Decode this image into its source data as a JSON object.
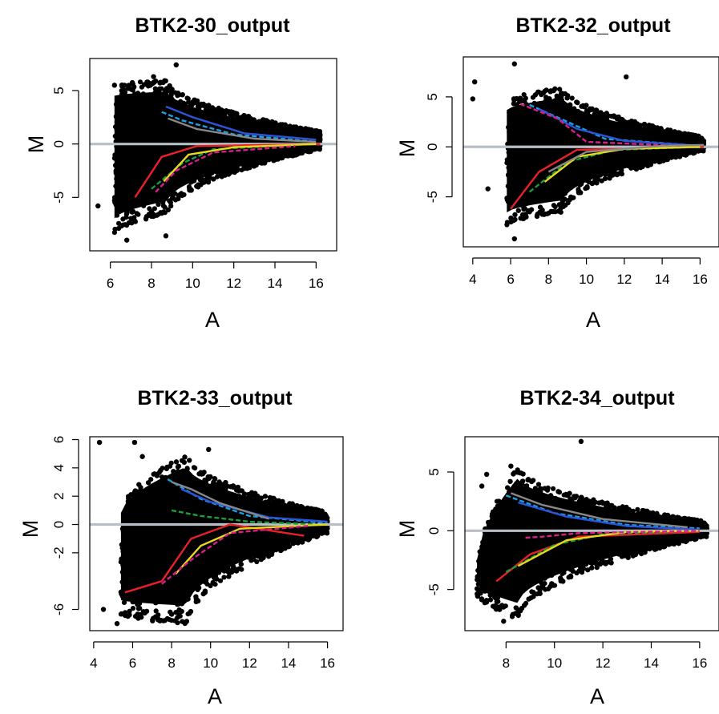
{
  "colors": {
    "background": "#ffffff",
    "points": "#000000",
    "reference_line": "#b9bec6",
    "loess_curves": [
      "#e8202a",
      "#19a0e6",
      "#2b55d6",
      "#1a9e3c",
      "#e8d81e",
      "#d81f8c",
      "#888888",
      "#ffffff"
    ]
  },
  "chart_data": [
    {
      "type": "scatter",
      "title": "BTK2-30_output",
      "xlabel": "A",
      "ylabel": "M",
      "xlim": [
        5,
        17
      ],
      "ylim": [
        -10,
        8
      ],
      "xticks": [
        6,
        8,
        10,
        12,
        14,
        16
      ],
      "yticks": [
        -5,
        0,
        5
      ],
      "reference_line_y": 0,
      "grid": false,
      "legend": "none",
      "cloud": {
        "start_a": 6.2,
        "start_m": [
          -8.5,
          5.5
        ],
        "center_a": 8.8,
        "center_m": [
          -6.5,
          6.0
        ],
        "end_a": 16.2,
        "end_m": [
          -0.5,
          1.2
        ]
      },
      "outliers": [
        [
          5.4,
          -5.8
        ],
        [
          6.8,
          -9.0
        ],
        [
          8.7,
          -8.6
        ],
        [
          8.1,
          6.3
        ],
        [
          9.2,
          7.4
        ],
        [
          6.2,
          5.5
        ]
      ],
      "series": [
        {
          "points": [
            [
              7.2,
              -5.0
            ],
            [
              8.5,
              -1.2
            ],
            [
              10.2,
              -0.2
            ],
            [
              16.2,
              0.0
            ]
          ]
        },
        {
          "points": [
            [
              8.5,
              3.0
            ],
            [
              9.5,
              2.2
            ],
            [
              12.0,
              0.9
            ],
            [
              16.0,
              0.2
            ]
          ]
        },
        {
          "points": [
            [
              8.7,
              3.5
            ],
            [
              10.0,
              2.5
            ],
            [
              12.5,
              1.0
            ],
            [
              16.0,
              0.4
            ]
          ]
        },
        {
          "points": [
            [
              8.0,
              -4.2
            ],
            [
              9.5,
              -1.8
            ],
            [
              11.0,
              -0.5
            ],
            [
              15.5,
              0.0
            ]
          ]
        },
        {
          "points": [
            [
              8.6,
              -3.5
            ],
            [
              9.8,
              -1.0
            ],
            [
              12.0,
              -0.3
            ],
            [
              16.0,
              0.0
            ]
          ]
        },
        {
          "points": [
            [
              8.2,
              -4.5
            ],
            [
              9.2,
              -2.5
            ],
            [
              11.0,
              -0.8
            ],
            [
              15.0,
              -0.2
            ]
          ]
        },
        {
          "points": [
            [
              8.8,
              2.4
            ],
            [
              10.2,
              1.4
            ],
            [
              13.0,
              0.5
            ],
            [
              16.0,
              0.2
            ]
          ]
        }
      ]
    },
    {
      "type": "scatter",
      "title": "BTK2-32_output",
      "xlabel": "A",
      "ylabel": "M",
      "xlim": [
        3.5,
        17
      ],
      "ylim": [
        -10,
        9
      ],
      "xticks": [
        4,
        6,
        8,
        10,
        12,
        14,
        16
      ],
      "yticks": [
        -5,
        0,
        5
      ],
      "reference_line_y": 0,
      "grid": false,
      "legend": "none",
      "cloud": {
        "start_a": 5.8,
        "start_m": [
          -8.0,
          4.5
        ],
        "center_a": 8.8,
        "center_m": [
          -6.5,
          6.0
        ],
        "end_a": 16.2,
        "end_m": [
          -0.4,
          1.0
        ]
      },
      "outliers": [
        [
          4.0,
          4.8
        ],
        [
          4.1,
          6.5
        ],
        [
          6.2,
          8.3
        ],
        [
          6.2,
          -9.2
        ],
        [
          12.1,
          7.0
        ],
        [
          4.8,
          -4.2
        ]
      ],
      "series": [
        {
          "points": [
            [
              6.0,
              -6.2
            ],
            [
              7.5,
              -2.5
            ],
            [
              9.5,
              -0.3
            ],
            [
              16.2,
              0.0
            ]
          ]
        },
        {
          "points": [
            [
              7.0,
              4.2
            ],
            [
              9.0,
              2.5
            ],
            [
              11.0,
              0.8
            ],
            [
              16.0,
              0.1
            ]
          ]
        },
        {
          "points": [
            [
              7.5,
              3.8
            ],
            [
              9.5,
              1.8
            ],
            [
              12.0,
              0.6
            ],
            [
              16.0,
              0.1
            ]
          ]
        },
        {
          "points": [
            [
              7.0,
              -4.5
            ],
            [
              9.0,
              -1.5
            ],
            [
              11.5,
              -0.3
            ],
            [
              16.0,
              0.0
            ]
          ]
        },
        {
          "points": [
            [
              7.8,
              -3.5
            ],
            [
              9.5,
              -1.0
            ],
            [
              12.0,
              -0.2
            ],
            [
              16.0,
              0.0
            ]
          ]
        },
        {
          "points": [
            [
              6.5,
              4.3
            ],
            [
              8.5,
              2.8
            ],
            [
              10.0,
              0.5
            ],
            [
              15.0,
              0.1
            ]
          ]
        },
        {
          "points": [
            [
              8.0,
              -2.5
            ],
            [
              10.0,
              -0.5
            ],
            [
              14.0,
              0.1
            ],
            [
              16.2,
              0.2
            ]
          ]
        }
      ]
    },
    {
      "type": "scatter",
      "title": "BTK2-33_output",
      "xlabel": "A",
      "ylabel": "M",
      "xlim": [
        3.8,
        16.8
      ],
      "ylim": [
        -7.5,
        6.2
      ],
      "xticks": [
        4,
        6,
        8,
        10,
        12,
        14,
        16
      ],
      "yticks": [
        -6,
        -2,
        0,
        2,
        4,
        6
      ],
      "reference_line_y": 0,
      "grid": false,
      "legend": "none",
      "cloud": {
        "start_a": 5.4,
        "start_m": [
          -6.5,
          1.0
        ],
        "center_a": 8.8,
        "center_m": [
          -7.0,
          5.0
        ],
        "end_a": 16.0,
        "end_m": [
          -0.6,
          0.9
        ]
      },
      "outliers": [
        [
          4.3,
          5.8
        ],
        [
          4.5,
          -6.0
        ],
        [
          5.2,
          -7.0
        ],
        [
          6.1,
          5.8
        ],
        [
          6.5,
          4.8
        ],
        [
          9.9,
          5.3
        ]
      ],
      "series": [
        {
          "points": [
            [
              5.6,
              -4.8
            ],
            [
              7.5,
              -4.0
            ],
            [
              9.0,
              -1.0
            ],
            [
              11.0,
              0.0
            ],
            [
              14.8,
              -0.8
            ]
          ]
        },
        {
          "points": [
            [
              7.8,
              3.2
            ],
            [
              9.5,
              1.8
            ],
            [
              12.0,
              0.6
            ],
            [
              16.0,
              0.1
            ]
          ]
        },
        {
          "points": [
            [
              8.5,
              2.5
            ],
            [
              10.0,
              1.6
            ],
            [
              13.0,
              0.5
            ],
            [
              16.0,
              0.2
            ]
          ]
        },
        {
          "points": [
            [
              8.0,
              1.0
            ],
            [
              9.5,
              0.6
            ],
            [
              12.0,
              0.2
            ],
            [
              15.5,
              0.0
            ]
          ]
        },
        {
          "points": [
            [
              8.2,
              -3.5
            ],
            [
              9.5,
              -1.5
            ],
            [
              11.5,
              -0.3
            ],
            [
              16.0,
              0.0
            ]
          ]
        },
        {
          "points": [
            [
              7.5,
              -4.2
            ],
            [
              9.0,
              -2.5
            ],
            [
              11.0,
              -0.6
            ],
            [
              15.0,
              -0.1
            ]
          ]
        },
        {
          "points": [
            [
              8.0,
              3.0
            ],
            [
              9.0,
              2.5
            ],
            [
              10.5,
              1.5
            ],
            [
              13.0,
              0.4
            ]
          ]
        }
      ]
    },
    {
      "type": "scatter",
      "title": "BTK2-34_output",
      "xlabel": "A",
      "ylabel": "M",
      "xlim": [
        6.3,
        16.8
      ],
      "ylim": [
        -8.5,
        8
      ],
      "xticks": [
        8,
        10,
        12,
        14,
        16
      ],
      "yticks": [
        -5,
        0,
        5
      ],
      "reference_line_y": 0,
      "grid": false,
      "legend": "none",
      "cloud": {
        "start_a": 6.8,
        "start_m": [
          -5.5,
          -3.0
        ],
        "center_a": 8.5,
        "center_m": [
          -7.5,
          5.5
        ],
        "end_a": 16.3,
        "end_m": [
          -0.5,
          0.8
        ]
      },
      "outliers": [
        [
          6.9,
          -5.0
        ],
        [
          8.2,
          5.5
        ],
        [
          7.0,
          3.8
        ],
        [
          11.1,
          7.6
        ],
        [
          7.9,
          -7.7
        ],
        [
          7.2,
          4.8
        ]
      ],
      "series": [
        {
          "points": [
            [
              7.6,
              -4.3
            ],
            [
              9.0,
              -2.0
            ],
            [
              11.0,
              -0.5
            ],
            [
              16.0,
              -0.1
            ]
          ]
        },
        {
          "points": [
            [
              8.0,
              3.0
            ],
            [
              10.0,
              1.5
            ],
            [
              13.0,
              0.5
            ],
            [
              16.0,
              0.2
            ]
          ]
        },
        {
          "points": [
            [
              8.5,
              2.4
            ],
            [
              10.5,
              1.2
            ],
            [
              13.0,
              0.4
            ],
            [
              16.0,
              0.1
            ]
          ]
        },
        {
          "points": [
            [
              8.0,
              -3.5
            ],
            [
              10.0,
              -1.2
            ],
            [
              12.0,
              -0.3
            ],
            [
              16.0,
              0.0
            ]
          ]
        },
        {
          "points": [
            [
              8.5,
              -3.0
            ],
            [
              10.5,
              -0.8
            ],
            [
              13.0,
              -0.1
            ],
            [
              16.0,
              0.0
            ]
          ]
        },
        {
          "points": [
            [
              8.8,
              -0.6
            ],
            [
              9.5,
              -0.5
            ],
            [
              11.0,
              -0.2
            ],
            [
              16.0,
              0.0
            ]
          ]
        },
        {
          "points": [
            [
              8.2,
              3.2
            ],
            [
              9.5,
              2.2
            ],
            [
              12.0,
              1.0
            ],
            [
              15.5,
              0.3
            ]
          ]
        }
      ]
    }
  ]
}
